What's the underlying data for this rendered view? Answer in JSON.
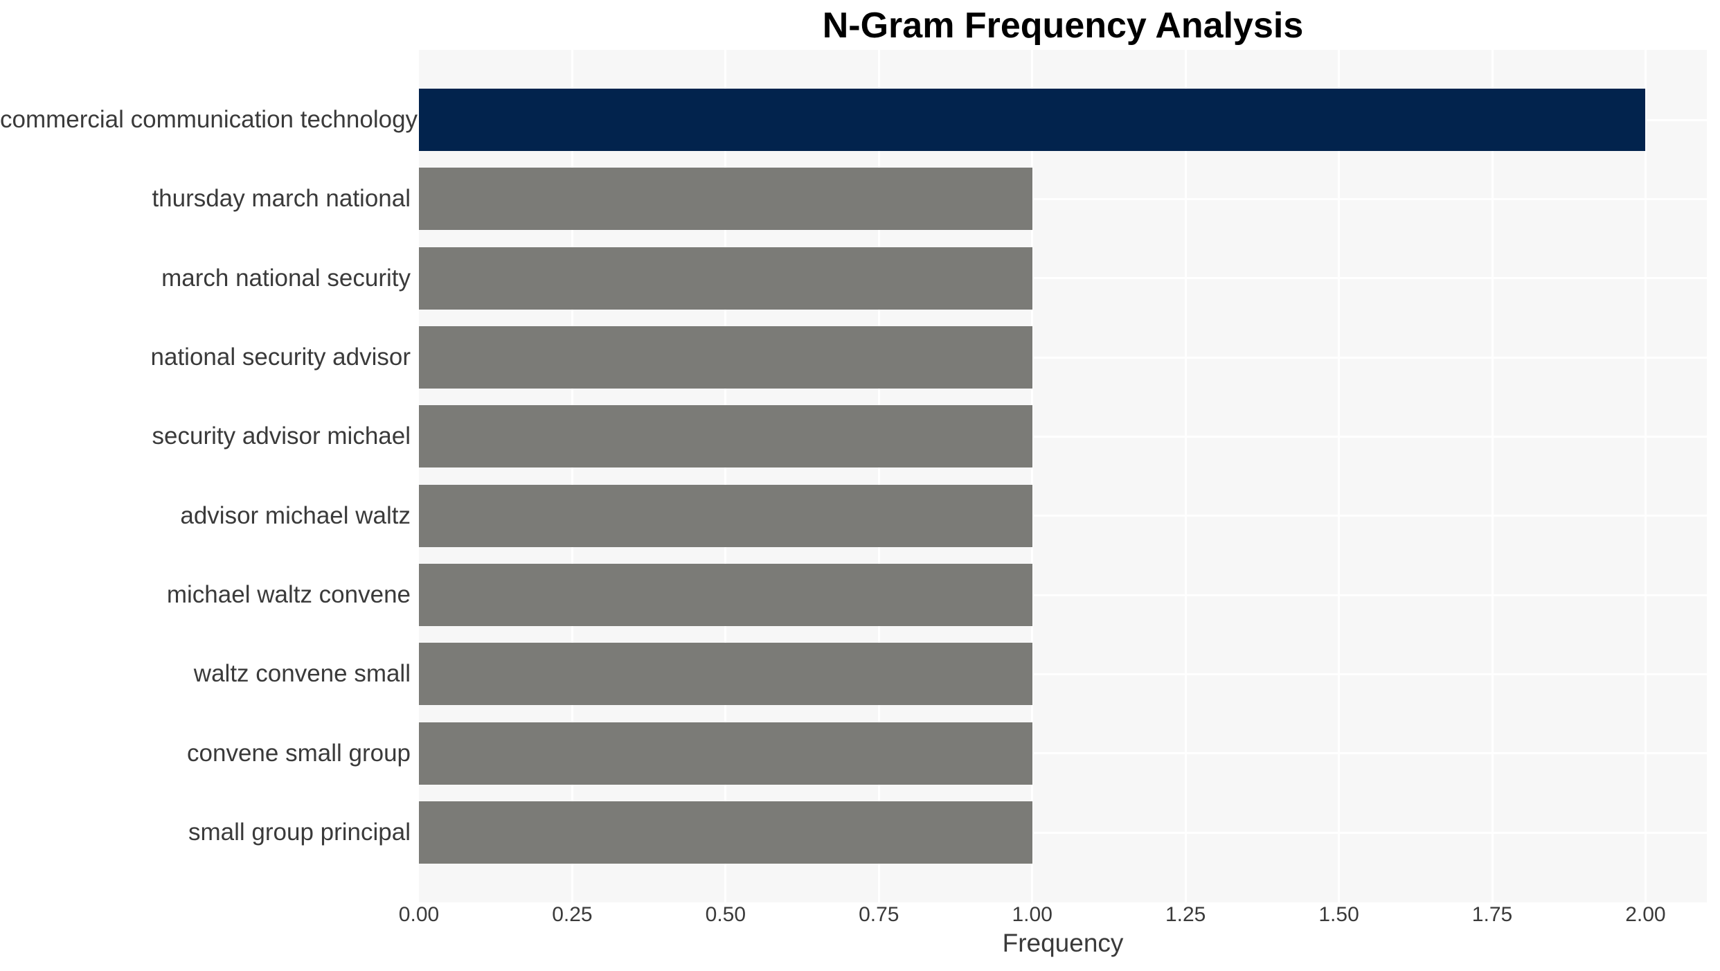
{
  "chart_data": {
    "type": "bar",
    "orientation": "horizontal",
    "title": "N-Gram Frequency Analysis",
    "xlabel": "Frequency",
    "ylabel": "",
    "categories": [
      "commercial communication technology",
      "thursday march national",
      "march national security",
      "national security advisor",
      "security advisor michael",
      "advisor michael waltz",
      "michael waltz convene",
      "waltz convene small",
      "convene small group",
      "small group principal"
    ],
    "values": [
      2,
      1,
      1,
      1,
      1,
      1,
      1,
      1,
      1,
      1
    ],
    "xlim": [
      0,
      2.1
    ],
    "x_ticks": [
      0,
      0.25,
      0.5,
      0.75,
      1,
      1.25,
      1.5,
      1.75,
      2
    ],
    "x_tick_labels": [
      "0.00",
      "0.25",
      "0.50",
      "0.75",
      "1.00",
      "1.25",
      "1.50",
      "1.75",
      "2.00"
    ],
    "grid": true,
    "legend": false,
    "bar_colors": [
      "#02234d",
      "#7b7b77",
      "#7b7b77",
      "#7b7b77",
      "#7b7b77",
      "#7b7b77",
      "#7b7b77",
      "#7b7b77",
      "#7b7b77",
      "#7b7b77"
    ],
    "colors": {
      "highlight_bar": "#02234d",
      "default_bar": "#7b7b77",
      "plot_background": "#f7f7f7",
      "gridline": "#ffffff",
      "axis_text": "#3a3a3a",
      "title_text": "#000000",
      "figure_background": "#ffffff"
    }
  }
}
